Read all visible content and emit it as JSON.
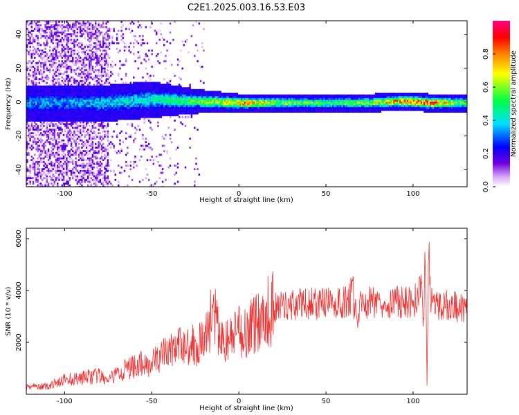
{
  "title": "C2E1.2025.003.16.53.E03",
  "chart_data": [
    {
      "type": "heatmap",
      "xlabel": "Height of straight line (km)",
      "ylabel": "Frequency (Hz)",
      "xlim": [
        -122,
        131
      ],
      "ylim": [
        -50,
        48
      ],
      "xticks": [
        -100,
        -50,
        0,
        50,
        100
      ],
      "yticks": [
        -40,
        -20,
        0,
        20,
        40
      ],
      "colorbar": {
        "label": "Normalized spectral amplitude",
        "range": [
          0,
          1
        ],
        "ticks": [
          0.0,
          0.2,
          0.4,
          0.6,
          0.8
        ],
        "colormap": [
          "#ffffff",
          "#d8a8f8",
          "#7000e0",
          "#0000ff",
          "#00e0ff",
          "#00ff40",
          "#ffff00",
          "#ff8000",
          "#ff0000",
          "#ff0080"
        ]
      },
      "ridge": {
        "description_points": [
          {
            "x": -100,
            "center_hz": 0,
            "halfwidth_hz": 6,
            "amplitude": 0.35
          },
          {
            "x": -75,
            "center_hz": 0,
            "halfwidth_hz": 6,
            "amplitude": 0.4
          },
          {
            "x": -50,
            "center_hz": 2,
            "halfwidth_hz": 6,
            "amplitude": 0.45
          },
          {
            "x": -25,
            "center_hz": 1,
            "halfwidth_hz": 4,
            "amplitude": 0.55
          },
          {
            "x": 0,
            "center_hz": 0,
            "halfwidth_hz": 3,
            "amplitude": 0.8
          },
          {
            "x": 25,
            "center_hz": 0,
            "halfwidth_hz": 3,
            "amplitude": 0.6
          },
          {
            "x": 50,
            "center_hz": 0,
            "halfwidth_hz": 3,
            "amplitude": 0.55
          },
          {
            "x": 75,
            "center_hz": 0,
            "halfwidth_hz": 3,
            "amplitude": 0.6
          },
          {
            "x": 95,
            "center_hz": 1,
            "halfwidth_hz": 3,
            "amplitude": 0.85
          },
          {
            "x": 110,
            "center_hz": 0,
            "halfwidth_hz": 3,
            "amplitude": 0.85
          },
          {
            "x": 130,
            "center_hz": 0,
            "halfwidth_hz": 3,
            "amplitude": 0.55
          }
        ]
      }
    },
    {
      "type": "line",
      "xlabel": "Height of straight line (km)",
      "ylabel": "SNR (10 * v/v)",
      "xlim": [
        -122,
        131
      ],
      "ylim": [
        0,
        6400
      ],
      "xticks": [
        -100,
        -50,
        0,
        50,
        100
      ],
      "yticks": [
        2000,
        4000,
        6000
      ],
      "series": [
        {
          "color": "#ee3333",
          "x": [
            -122,
            -110,
            -100,
            -90,
            -80,
            -75,
            -70,
            -60,
            -50,
            -40,
            -30,
            -20,
            -15,
            -10,
            -5,
            0,
            5,
            10,
            15,
            20,
            25,
            30,
            40,
            50,
            60,
            64,
            65,
            66,
            68,
            70,
            80,
            90,
            95,
            100,
            102,
            105,
            106,
            107,
            108,
            109,
            110,
            120,
            131
          ],
          "values": [
            300,
            300,
            550,
            650,
            700,
            500,
            800,
            1100,
            1200,
            1700,
            1900,
            2000,
            3200,
            2000,
            2100,
            2400,
            2450,
            2800,
            3100,
            3300,
            3400,
            3450,
            3500,
            3500,
            3500,
            3700,
            4800,
            3500,
            2800,
            3500,
            3600,
            3550,
            3550,
            3500,
            3800,
            4000,
            2500,
            5800,
            400,
            6300,
            3500,
            3400,
            3300
          ]
        }
      ]
    }
  ]
}
